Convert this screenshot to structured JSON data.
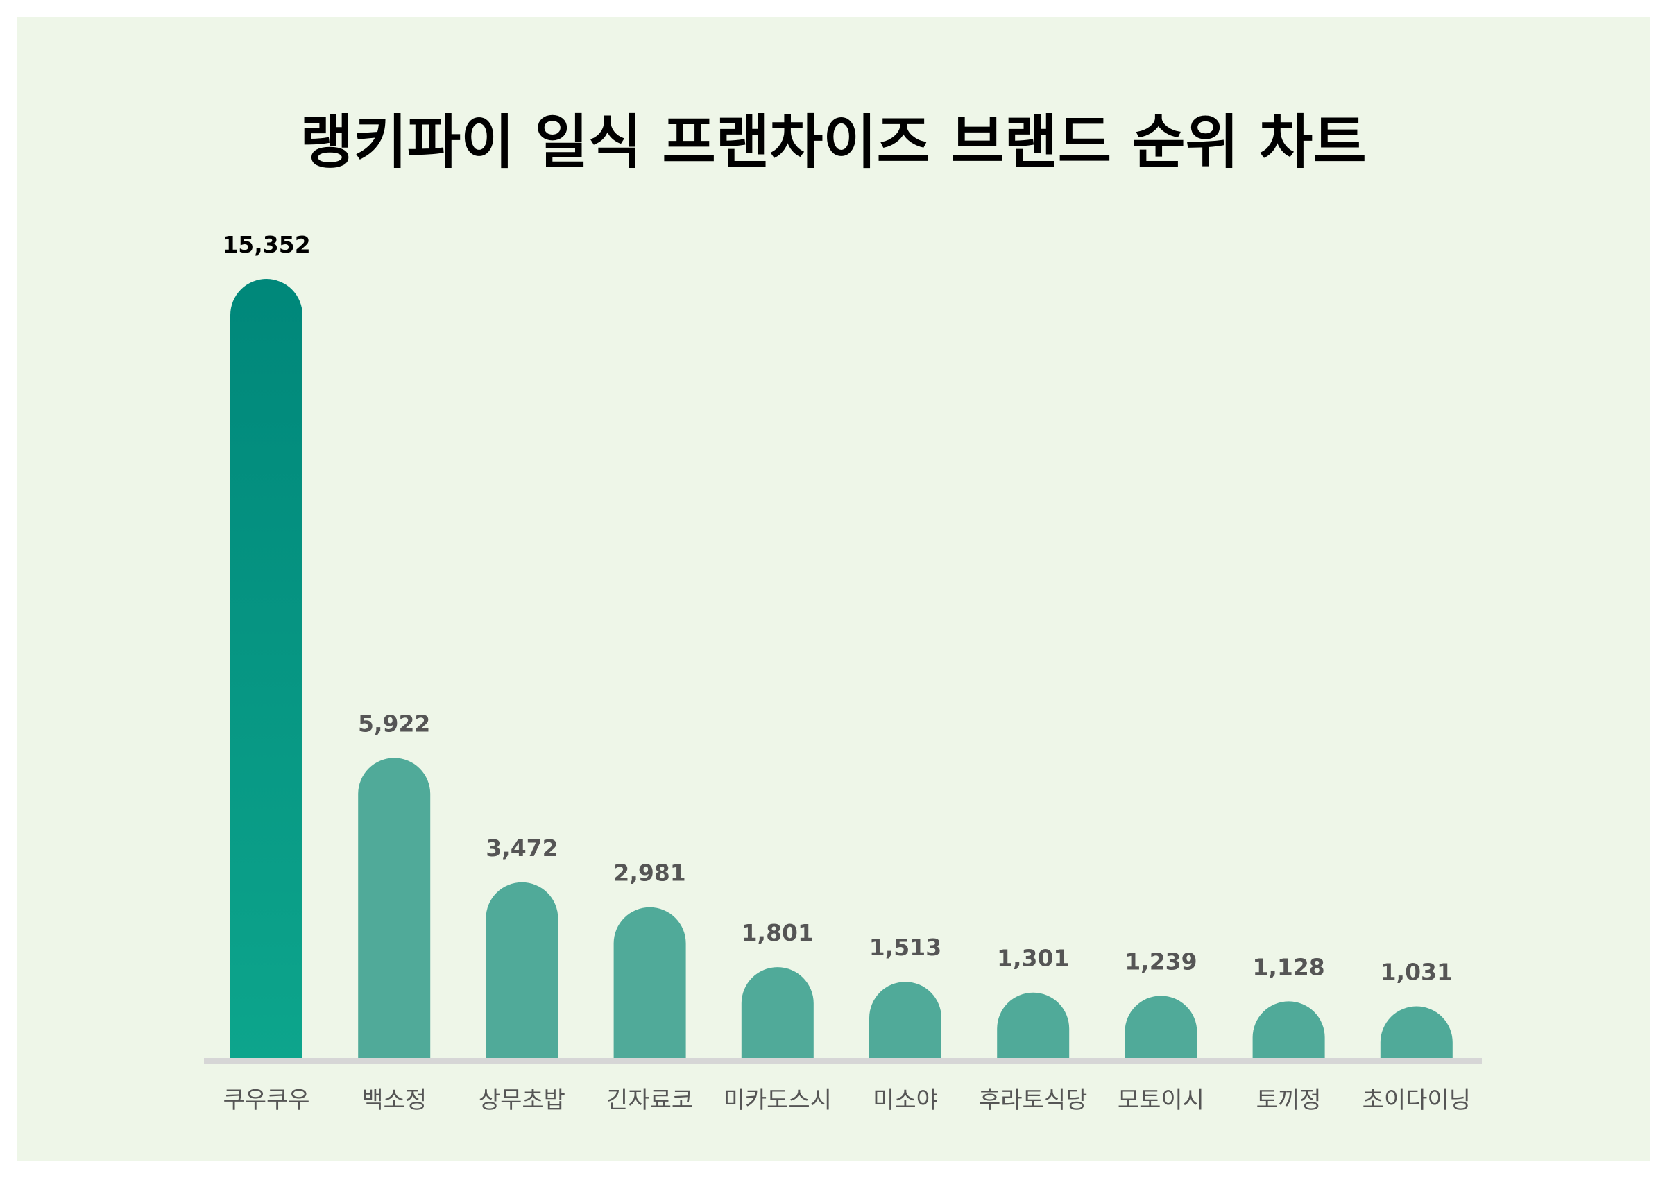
{
  "colors": {
    "panel_background": "#eef6e8",
    "bar_top": "#00877a",
    "bar_bottom": "#0da58c",
    "bar": "#50aa99",
    "baseline": "#d6d6d6",
    "value_label_first": "#000000",
    "value_label": "#555555",
    "category_label": "#555555"
  },
  "chart_data": {
    "type": "bar",
    "title": "랭키파이 일식 프랜차이즈 브랜드 순위 차트",
    "categories": [
      "쿠우쿠우",
      "백소정",
      "상무초밥",
      "긴자료코",
      "미카도스시",
      "미소야",
      "후라토식당",
      "모토이시",
      "토끼정",
      "초이다이닝"
    ],
    "values": [
      15352,
      5922,
      3472,
      2981,
      1801,
      1513,
      1301,
      1239,
      1128,
      1031
    ],
    "value_labels": [
      "15,352",
      "5,922",
      "3,472",
      "2,981",
      "1,801",
      "1,513",
      "1,301",
      "1,239",
      "1,128",
      "1,031"
    ],
    "ylim": [
      0,
      15352
    ],
    "grid": false,
    "legend": "none"
  }
}
